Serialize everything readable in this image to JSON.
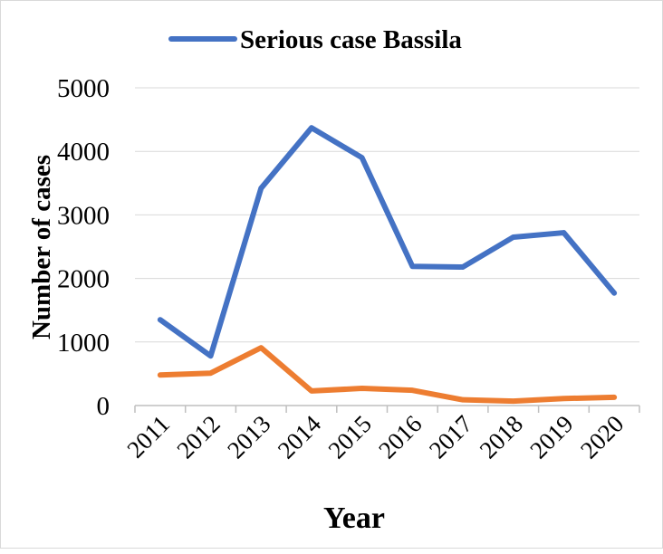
{
  "chart_data": {
    "type": "line",
    "title": "",
    "xlabel": "Year",
    "ylabel": "Number of cases",
    "categories": [
      "2011",
      "2012",
      "2013",
      "2014",
      "2015",
      "2016",
      "2017",
      "2018",
      "2019",
      "2020"
    ],
    "ylim": [
      0,
      5000
    ],
    "yticks": [
      "0",
      "1000",
      "2000",
      "3000",
      "4000",
      "5000"
    ],
    "grid": true,
    "legend_position": "top",
    "series": [
      {
        "name": "Serious case Bassila",
        "color": "#4472C4",
        "in_legend": true,
        "values": [
          1350,
          780,
          3420,
          4370,
          3900,
          2190,
          2180,
          2650,
          2720,
          1770
        ]
      },
      {
        "name": "",
        "color": "#ED7D31",
        "in_legend": false,
        "values": [
          480,
          510,
          910,
          230,
          270,
          240,
          90,
          70,
          110,
          130
        ]
      }
    ]
  }
}
